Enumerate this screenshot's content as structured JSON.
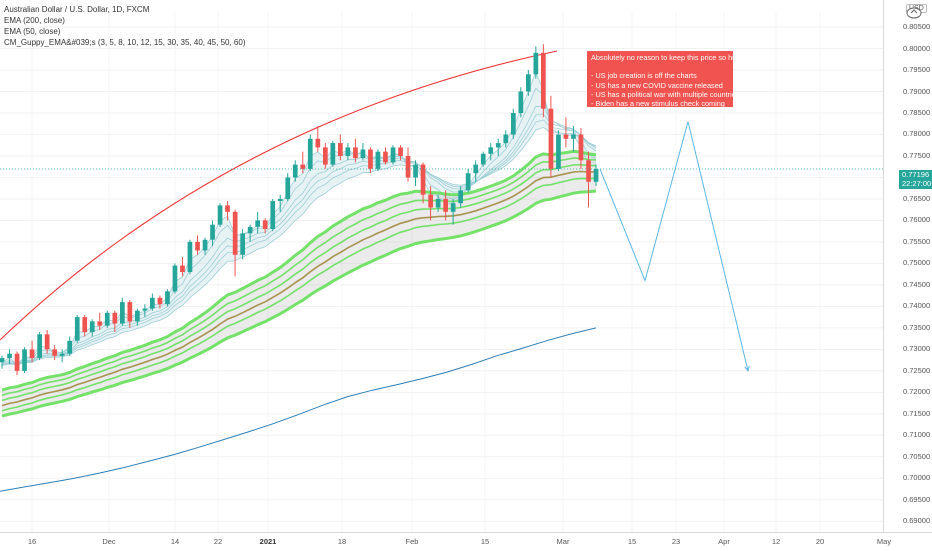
{
  "chart_title": "Australian Dollar / U.S. Dollar, 1D, FXCM",
  "indicators": [
    "EMA (200, close)",
    "EMA (50, close)",
    "CM_Guppy_EMA&#039;s (3, 5, 8, 10, 12, 15, 30, 35, 40, 45, 50, 60)"
  ],
  "currency": "USD",
  "last_price": "0.77196",
  "countdown": "22:27:00",
  "annotation": "Absolutely no reason to keep this price so high.\n\n- US job creation is off the charts\n- US has a new COVID vaccine released\n- US has a political war with multiple countries\n- Biden has a new stimulus check coming",
  "colors": {
    "up": "#26a69a",
    "down": "#ef5350",
    "ema200": "#2e7fb8",
    "guppy_slow": "#66e05a",
    "guppy_mid": "#a08a3c",
    "arc": "#ee3333",
    "projection": "#5bb7e6",
    "note_bg": "#f05350"
  },
  "chart_data": {
    "type": "candlestick",
    "y_ticks": [
      "0.80500",
      "0.80000",
      "0.79500",
      "0.79000",
      "0.78500",
      "0.78000",
      "0.77500",
      "0.77000",
      "0.76500",
      "0.76000",
      "0.75500",
      "0.75000",
      "0.74500",
      "0.74000",
      "0.73500",
      "0.73000",
      "0.72500",
      "0.72000",
      "0.71500",
      "0.71000",
      "0.70500",
      "0.70000",
      "0.69500",
      "0.69000"
    ],
    "ylim": [
      0.6875,
      0.8085
    ],
    "x_ticks": [
      {
        "label": "16",
        "bold": false
      },
      {
        "label": "Dec",
        "bold": false
      },
      {
        "label": "14",
        "bold": false
      },
      {
        "label": "22",
        "bold": false
      },
      {
        "label": "2021",
        "bold": true
      },
      {
        "label": "18",
        "bold": false
      },
      {
        "label": "Feb",
        "bold": false
      },
      {
        "label": "15",
        "bold": false
      },
      {
        "label": "Mar",
        "bold": false
      },
      {
        "label": "15",
        "bold": false
      },
      {
        "label": "23",
        "bold": false
      },
      {
        "label": "Apr",
        "bold": false
      },
      {
        "label": "12",
        "bold": false
      },
      {
        "label": "20",
        "bold": false
      },
      {
        "label": "May",
        "bold": false
      }
    ],
    "candles": [
      [
        0.727,
        0.7285,
        0.7255,
        0.728
      ],
      [
        0.728,
        0.73,
        0.7265,
        0.729
      ],
      [
        0.729,
        0.7295,
        0.724,
        0.725
      ],
      [
        0.725,
        0.7305,
        0.7245,
        0.73
      ],
      [
        0.73,
        0.732,
        0.727,
        0.728
      ],
      [
        0.728,
        0.734,
        0.7275,
        0.7335
      ],
      [
        0.7335,
        0.7345,
        0.729,
        0.73
      ],
      [
        0.73,
        0.731,
        0.7275,
        0.7285
      ],
      [
        0.7285,
        0.73,
        0.727,
        0.729
      ],
      [
        0.729,
        0.733,
        0.7285,
        0.732
      ],
      [
        0.732,
        0.738,
        0.7315,
        0.7375
      ],
      [
        0.7375,
        0.738,
        0.733,
        0.734
      ],
      [
        0.734,
        0.737,
        0.733,
        0.7365
      ],
      [
        0.7365,
        0.7385,
        0.7345,
        0.7355
      ],
      [
        0.7355,
        0.739,
        0.735,
        0.7385
      ],
      [
        0.7385,
        0.739,
        0.734,
        0.736
      ],
      [
        0.736,
        0.742,
        0.7355,
        0.741
      ],
      [
        0.741,
        0.7415,
        0.735,
        0.7365
      ],
      [
        0.7365,
        0.7395,
        0.7355,
        0.739
      ],
      [
        0.739,
        0.7405,
        0.7375,
        0.7395
      ],
      [
        0.7395,
        0.743,
        0.739,
        0.742
      ],
      [
        0.742,
        0.7425,
        0.7395,
        0.7405
      ],
      [
        0.7405,
        0.744,
        0.74,
        0.7435
      ],
      [
        0.7435,
        0.75,
        0.743,
        0.7495
      ],
      [
        0.7495,
        0.7515,
        0.747,
        0.748
      ],
      [
        0.748,
        0.7555,
        0.7475,
        0.755
      ],
      [
        0.755,
        0.7565,
        0.752,
        0.753
      ],
      [
        0.753,
        0.756,
        0.752,
        0.7555
      ],
      [
        0.7555,
        0.76,
        0.754,
        0.759
      ],
      [
        0.759,
        0.764,
        0.7585,
        0.7635
      ],
      [
        0.7635,
        0.7645,
        0.76,
        0.762
      ],
      [
        0.762,
        0.7625,
        0.747,
        0.752
      ],
      [
        0.752,
        0.758,
        0.751,
        0.757
      ],
      [
        0.757,
        0.759,
        0.755,
        0.7585
      ],
      [
        0.7585,
        0.762,
        0.757,
        0.76
      ],
      [
        0.76,
        0.7605,
        0.757,
        0.758
      ],
      [
        0.758,
        0.765,
        0.7575,
        0.7645
      ],
      [
        0.7645,
        0.766,
        0.762,
        0.765
      ],
      [
        0.765,
        0.771,
        0.7645,
        0.77
      ],
      [
        0.77,
        0.774,
        0.769,
        0.773
      ],
      [
        0.773,
        0.776,
        0.771,
        0.772
      ],
      [
        0.772,
        0.78,
        0.7715,
        0.779
      ],
      [
        0.779,
        0.782,
        0.776,
        0.777
      ],
      [
        0.777,
        0.778,
        0.772,
        0.773
      ],
      [
        0.773,
        0.7785,
        0.7725,
        0.778
      ],
      [
        0.778,
        0.78,
        0.774,
        0.775
      ],
      [
        0.775,
        0.778,
        0.774,
        0.777
      ],
      [
        0.777,
        0.779,
        0.7735,
        0.7745
      ],
      [
        0.7745,
        0.778,
        0.774,
        0.7765
      ],
      [
        0.7765,
        0.777,
        0.771,
        0.772
      ],
      [
        0.772,
        0.7765,
        0.7715,
        0.776
      ],
      [
        0.776,
        0.777,
        0.773,
        0.7735
      ],
      [
        0.7735,
        0.7775,
        0.773,
        0.777
      ],
      [
        0.777,
        0.7775,
        0.774,
        0.775
      ],
      [
        0.775,
        0.777,
        0.769,
        0.77
      ],
      [
        0.77,
        0.774,
        0.768,
        0.773
      ],
      [
        0.773,
        0.7735,
        0.764,
        0.766
      ],
      [
        0.766,
        0.768,
        0.76,
        0.763
      ],
      [
        0.763,
        0.766,
        0.762,
        0.765
      ],
      [
        0.765,
        0.767,
        0.76,
        0.762
      ],
      [
        0.762,
        0.765,
        0.759,
        0.764
      ],
      [
        0.764,
        0.768,
        0.763,
        0.767
      ],
      [
        0.767,
        0.772,
        0.7665,
        0.771
      ],
      [
        0.771,
        0.774,
        0.769,
        0.773
      ],
      [
        0.773,
        0.776,
        0.7725,
        0.7755
      ],
      [
        0.7755,
        0.778,
        0.774,
        0.777
      ],
      [
        0.777,
        0.779,
        0.775,
        0.778
      ],
      [
        0.778,
        0.781,
        0.777,
        0.78
      ],
      [
        0.78,
        0.786,
        0.779,
        0.785
      ],
      [
        0.785,
        0.791,
        0.784,
        0.79
      ],
      [
        0.79,
        0.795,
        0.789,
        0.794
      ],
      [
        0.794,
        0.8005,
        0.793,
        0.799
      ],
      [
        0.799,
        0.801,
        0.784,
        0.786
      ],
      [
        0.786,
        0.789,
        0.77,
        0.772
      ],
      [
        0.772,
        0.781,
        0.7715,
        0.78
      ],
      [
        0.78,
        0.784,
        0.777,
        0.779
      ],
      [
        0.779,
        0.782,
        0.776,
        0.78
      ],
      [
        0.78,
        0.7815,
        0.772,
        0.774
      ],
      [
        0.774,
        0.776,
        0.763,
        0.769
      ],
      [
        0.769,
        0.773,
        0.768,
        0.772
      ]
    ],
    "ema200": [
      0.697,
      0.698,
      0.699,
      0.7,
      0.7012,
      0.7025,
      0.704,
      0.7055,
      0.7072,
      0.709,
      0.7108,
      0.7127,
      0.7148,
      0.717,
      0.719,
      0.7205,
      0.7218,
      0.7232,
      0.7247,
      0.7265,
      0.7285,
      0.7302,
      0.732,
      0.7336,
      0.735
    ],
    "projection": [
      [
        0.772,
        0.746
      ],
      [
        0.746,
        0.783
      ],
      [
        0.783,
        0.725
      ]
    ]
  }
}
